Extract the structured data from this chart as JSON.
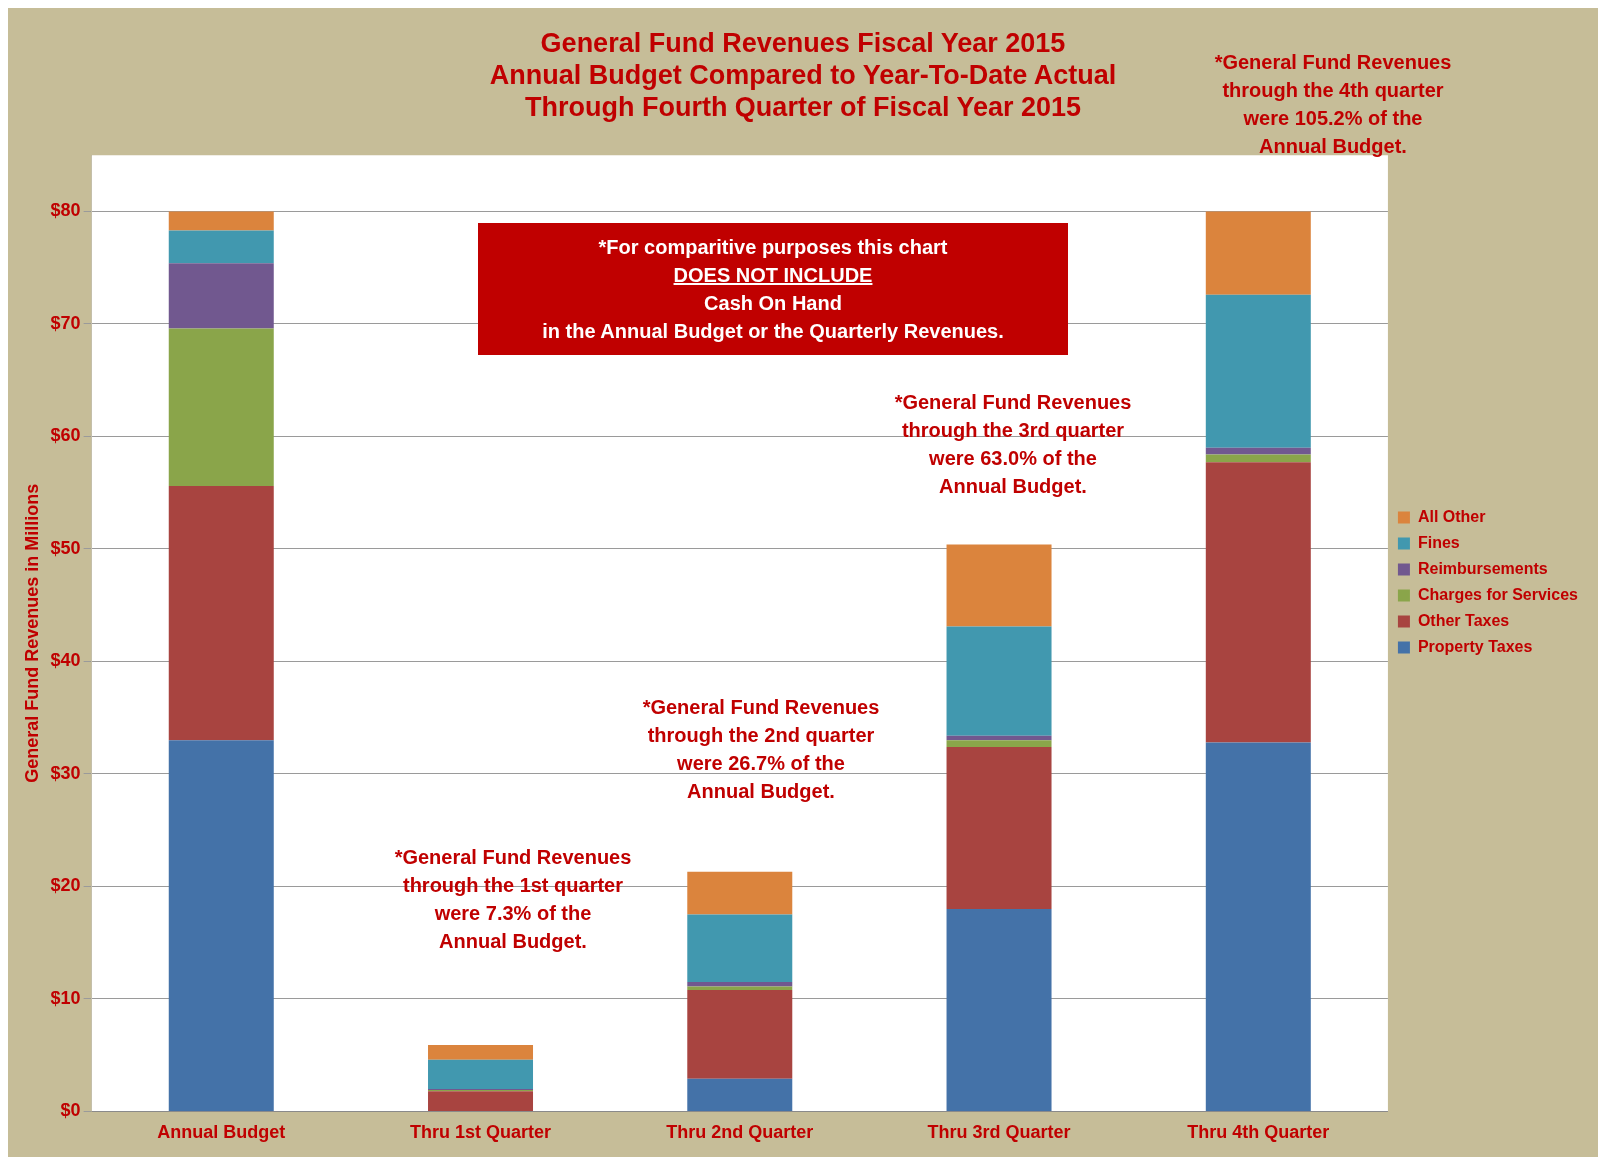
{
  "chart_data": {
    "type": "bar",
    "stacked": true,
    "title": "General Fund Revenues Fiscal Year 2015\nAnnual Budget Compared to Year-To-Date Actual\nThrough Fourth Quarter of Fiscal Year 2015",
    "ylabel": "General Fund Revenues in Millions",
    "categories": [
      "Annual Budget",
      "Thru 1st Quarter",
      "Thru 2nd Quarter",
      "Thru 3rd Quarter",
      "Thru 4th Quarter"
    ],
    "series": [
      {
        "name": "Property Taxes",
        "color": "#4472a8",
        "values": [
          33.0,
          0,
          2.9,
          18.0,
          32.8
        ]
      },
      {
        "name": "Other Taxes",
        "color": "#a84440",
        "values": [
          22.6,
          1.8,
          7.9,
          14.4,
          24.9
        ]
      },
      {
        "name": "Charges for Services",
        "color": "#8aa54a",
        "values": [
          14.0,
          0.1,
          0.3,
          0.6,
          0.7
        ]
      },
      {
        "name": "Reimbursements",
        "color": "#71588f",
        "values": [
          5.8,
          0.1,
          0.4,
          0.4,
          0.6
        ]
      },
      {
        "name": "Fines",
        "color": "#4198af",
        "values": [
          2.9,
          2.6,
          6.0,
          9.7,
          13.6
        ]
      },
      {
        "name": "All Other",
        "color": "#db843d",
        "values": [
          1.7,
          1.3,
          3.8,
          7.3,
          7.4
        ]
      }
    ],
    "ylim": [
      0,
      85
    ],
    "yticks": [
      {
        "value": 0,
        "label": "$0"
      },
      {
        "value": 10,
        "label": "$10"
      },
      {
        "value": 20,
        "label": "$20"
      },
      {
        "value": 30,
        "label": "$30"
      },
      {
        "value": 40,
        "label": "$40"
      },
      {
        "value": 50,
        "label": "$50"
      },
      {
        "value": 60,
        "label": "$60"
      },
      {
        "value": 70,
        "label": "$70"
      },
      {
        "value": 80,
        "label": "$80"
      }
    ],
    "grid": "y",
    "legend": "right",
    "annotations": [
      "*For comparitive purposes this chart\nDOES NOT INCLUDE\nCash On Hand\nin the Annual Budget or the Quarterly Revenues.",
      "*General Fund Revenues\nthrough the 4th quarter\nwere 105.2% of the\nAnnual Budget.",
      "*General Fund Revenues\nthrough the 1st quarter\nwere 7.3% of the\nAnnual Budget.",
      "*General Fund Revenues\nthrough the 2nd quarter\nwere 26.7% of the\nAnnual Budget.",
      "*General Fund Revenues\nthrough the 3rd quarter\nwere 63.0% of the\nAnnual Budget."
    ]
  }
}
